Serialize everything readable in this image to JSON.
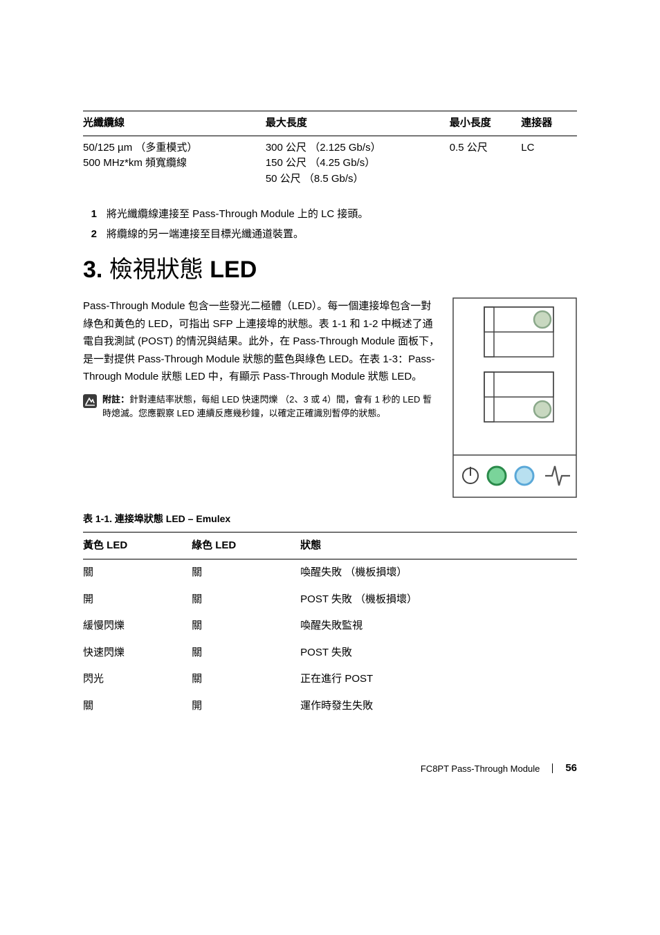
{
  "cable_table": {
    "headers": [
      "光纖纜線",
      "最大長度",
      "最小長度",
      "連接器"
    ],
    "row": {
      "col1_l1": "50/125 µm （多重模式）",
      "col1_l2": "500 MHz*km 頻寬纜線",
      "col2_l1": "300 公尺 （2.125 Gb/s）",
      "col2_l2": "150 公尺 （4.25 Gb/s）",
      "col2_l3": "50 公尺 （8.5 Gb/s）",
      "col3": "0.5 公尺",
      "col4": "LC"
    }
  },
  "steps": [
    {
      "num": "1",
      "text": "將光纖纜線連接至 Pass-Through Module 上的 LC 接頭。"
    },
    {
      "num": "2",
      "text": "將纜線的另一端連接至目標光纖通道裝置。"
    }
  ],
  "heading": {
    "num": "3.",
    "cjk": "檢視狀態",
    "latin": " LED"
  },
  "paragraph": "Pass-Through Module 包含一些發光二極體（LED）。每一個連接埠包含一對綠色和黃色的 LED，可指出 SFP 上連接埠的狀態。表 1-1 和 1-2 中概述了通電自我測試 (POST) 的情況與結果。此外，在 Pass-Through Module 面板下，是一對提供 Pass-Through Module 狀態的藍色與綠色 LED。在表 1-3：Pass-Through Module 狀態 LED 中，有顯示 Pass-Through Module 狀態 LED。",
  "note": {
    "label": "附註：",
    "text": "針對連結率狀態，每組 LED 快速閃爍 （2、3 或 4）間，會有 1 秒的 LED 暫時熄滅。您應觀察 LED 連續反應幾秒鐘，以確定正確識別暫停的狀態。"
  },
  "table_caption": "表 1-1.    連接埠狀態 LED – Emulex",
  "led_table": {
    "headers": [
      "黃色 LED",
      "綠色 LED",
      "狀態"
    ],
    "rows": [
      [
        "關",
        "關",
        "喚醒失敗 （機板損壞）"
      ],
      [
        "開",
        "關",
        "POST 失敗 （機板損壞）"
      ],
      [
        "緩慢閃爍",
        "關",
        "喚醒失敗監視"
      ],
      [
        "快速閃爍",
        "關",
        "POST 失敗"
      ],
      [
        "閃光",
        "關",
        "正在進行 POST"
      ],
      [
        "關",
        "開",
        "運作時發生失敗"
      ]
    ]
  },
  "footer": {
    "title": "FC8PT Pass-Through Module",
    "page": "56"
  },
  "colors": {
    "led_port_outer": "#8aa88a",
    "led_port_inner": "#c8d8c0",
    "led_status_green_outer": "#2a8a4a",
    "led_status_green_inner": "#7ad49a",
    "led_status_blue_outer": "#5aa8d8",
    "led_status_blue_inner": "#b8e0f0",
    "panel_stroke": "#444444",
    "pulse_stroke": "#555555",
    "note_icon_bg": "#3a3a3a"
  }
}
